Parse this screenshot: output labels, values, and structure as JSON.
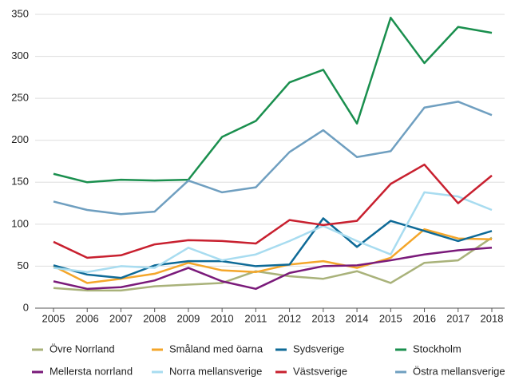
{
  "chart_data": {
    "type": "line",
    "categories": [
      "2005",
      "2006",
      "2007",
      "2008",
      "2009",
      "2010",
      "2011",
      "2012",
      "2013",
      "2014",
      "2015",
      "2016",
      "2017",
      "2018"
    ],
    "ylim": [
      0,
      350
    ],
    "yticks": [
      0,
      50,
      100,
      150,
      200,
      250,
      300,
      350
    ],
    "grid": true,
    "legend": "bottom",
    "series": [
      {
        "name": "Övre Norrland",
        "color": "#a9b27a",
        "values": [
          24,
          21,
          21,
          26,
          28,
          30,
          44,
          38,
          35,
          44,
          30,
          54,
          57,
          84
        ]
      },
      {
        "name": "Småland med öarna",
        "color": "#f4a62a",
        "values": [
          50,
          30,
          35,
          41,
          54,
          45,
          43,
          52,
          56,
          48,
          60,
          94,
          83,
          82
        ]
      },
      {
        "name": "Sydsverige",
        "color": "#0e6a97",
        "values": [
          51,
          40,
          36,
          51,
          56,
          56,
          50,
          52,
          107,
          73,
          104,
          92,
          80,
          92
        ]
      },
      {
        "name": "Stockholm",
        "color": "#1a8f4e",
        "values": [
          160,
          150,
          153,
          152,
          153,
          204,
          223,
          269,
          284,
          220,
          346,
          292,
          335,
          328
        ]
      },
      {
        "name": "Mellersta norrland",
        "color": "#7a1a7a",
        "values": [
          32,
          23,
          25,
          33,
          48,
          32,
          23,
          42,
          50,
          51,
          57,
          64,
          69,
          72
        ]
      },
      {
        "name": "Norra mellansverige",
        "color": "#a8dcf0",
        "values": [
          48,
          43,
          50,
          48,
          72,
          57,
          64,
          80,
          98,
          80,
          64,
          138,
          133,
          117
        ]
      },
      {
        "name": "Västsverige",
        "color": "#c8202f",
        "values": [
          79,
          60,
          63,
          76,
          81,
          80,
          77,
          105,
          99,
          104,
          148,
          171,
          125,
          158
        ]
      },
      {
        "name": "Östra mellansverige",
        "color": "#6f9fc0",
        "values": [
          127,
          117,
          112,
          115,
          152,
          138,
          144,
          186,
          212,
          180,
          187,
          239,
          246,
          230
        ]
      }
    ]
  }
}
